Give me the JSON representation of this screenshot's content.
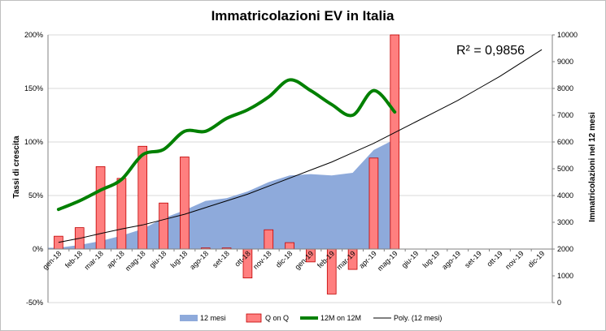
{
  "chart_data": {
    "type": "combo",
    "title": "Immatricolazioni EV in Italia",
    "ylabel_left": "Tassi di crescita",
    "ylabel_right": "Immatricolazioni nel 12 mesi",
    "ylim_left": [
      -0.5,
      2.0
    ],
    "ylim_right": [
      0,
      10000
    ],
    "yticks_left": [
      "200%",
      "150%",
      "100%",
      "50%",
      "0%",
      "-50%"
    ],
    "yticks_right": [
      "10000",
      "9000",
      "8000",
      "7000",
      "6000",
      "5000",
      "4000",
      "3000",
      "2000",
      "1000",
      "0"
    ],
    "categories": [
      "gen-18",
      "feb-18",
      "mar-18",
      "apr-18",
      "mag-18",
      "giu-18",
      "lug-18",
      "ago-18",
      "set-18",
      "ott-18",
      "nov-18",
      "dic-18",
      "gen-19",
      "feb-19",
      "mar-19",
      "apr-19",
      "mag-19",
      "giu-19",
      "lug-19",
      "ago-19",
      "set-19",
      "ott-19",
      "nov-19",
      "dic-19"
    ],
    "series": [
      {
        "name": "12 mesi",
        "type": "area",
        "axis": "right",
        "color": "#8eaadb",
        "values": [
          2050,
          2150,
          2300,
          2500,
          2750,
          3150,
          3450,
          3800,
          3900,
          4150,
          4500,
          4750,
          4800,
          4750,
          4850,
          5700,
          6100,
          null,
          null,
          null,
          null,
          null,
          null,
          null
        ]
      },
      {
        "name": "Q on Q",
        "type": "bar",
        "axis": "left",
        "color": "#ff7f7f",
        "values": [
          0.12,
          0.2,
          0.77,
          0.66,
          0.96,
          0.43,
          0.86,
          0.01,
          0.01,
          -0.27,
          0.18,
          0.06,
          -0.12,
          -0.42,
          -0.19,
          0.85,
          2.0,
          null,
          null,
          null,
          null,
          null,
          null,
          null
        ]
      },
      {
        "name": "12M on 12M",
        "type": "line",
        "axis": "left",
        "color": "#008000",
        "values": [
          0.37,
          0.45,
          0.55,
          0.65,
          0.88,
          0.93,
          1.1,
          1.1,
          1.22,
          1.3,
          1.42,
          1.58,
          1.48,
          1.35,
          1.25,
          1.48,
          1.28,
          null,
          null,
          null,
          null,
          null,
          null,
          null
        ]
      },
      {
        "name": "Poly. (12 mesi)",
        "type": "trendline",
        "axis": "right",
        "color": "#000000",
        "values": [
          2250,
          2400,
          2580,
          2750,
          2900,
          3100,
          3300,
          3550,
          3800,
          4050,
          4350,
          4650,
          4950,
          5250,
          5600,
          5950,
          6350,
          6750,
          7150,
          7550,
          8000,
          8450,
          8950,
          9450
        ]
      }
    ],
    "annotation": "R² = 0,9856",
    "legend_position": "bottom"
  }
}
